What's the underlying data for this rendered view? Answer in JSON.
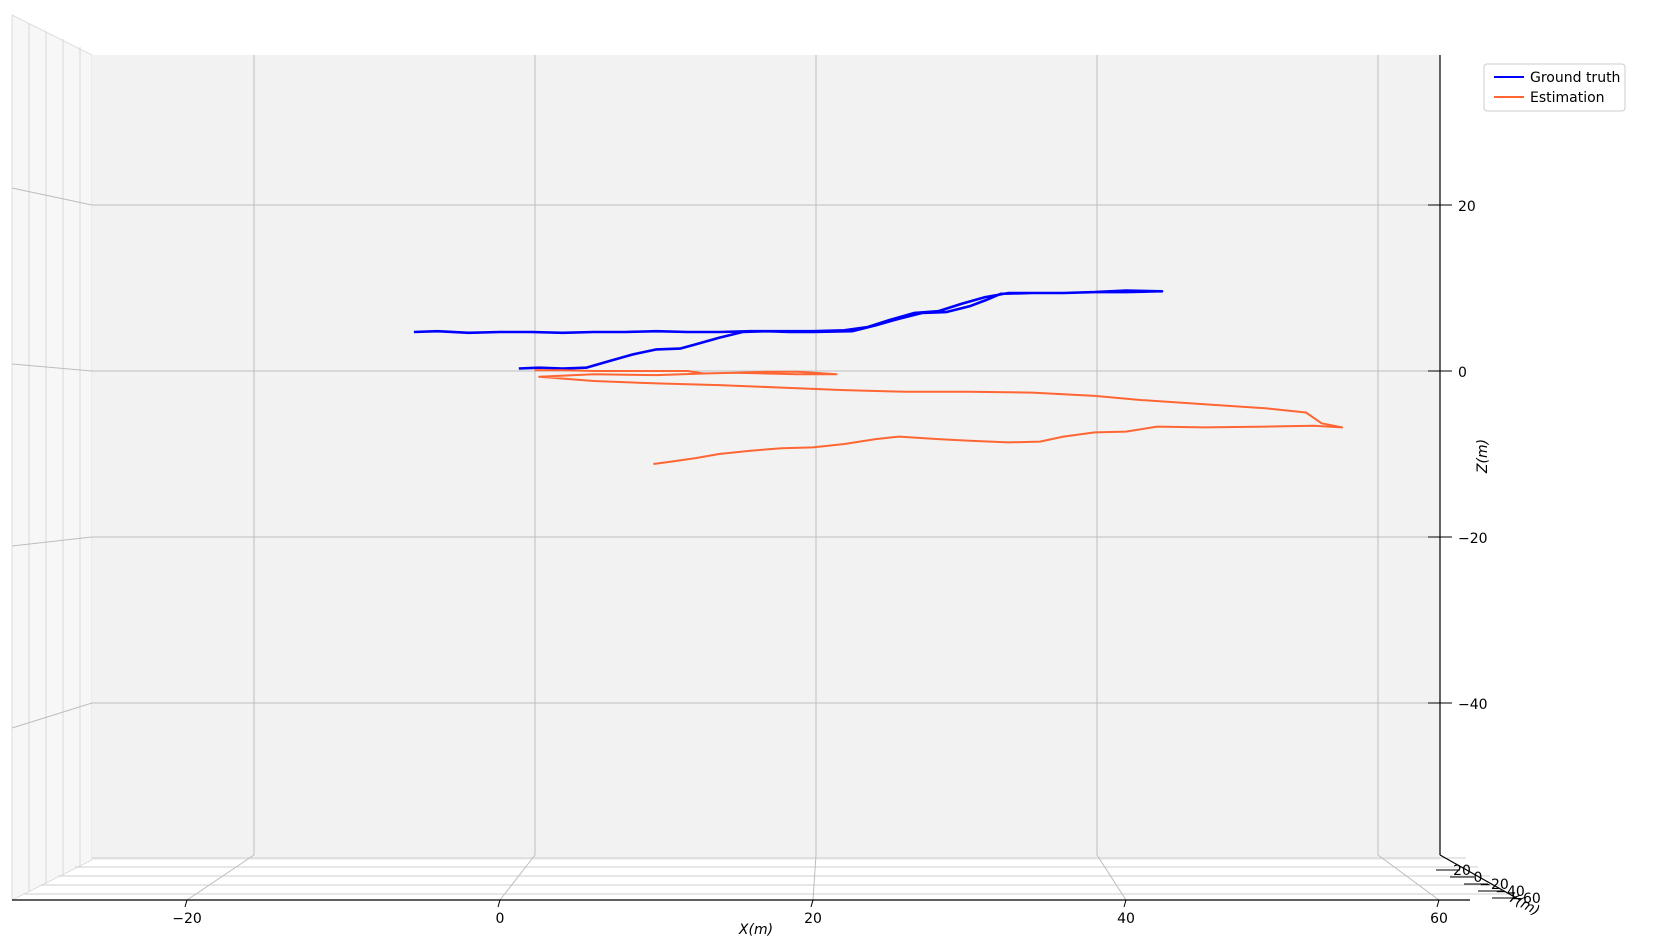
{
  "chart_data": {
    "type": "line",
    "projection": "3d",
    "xlabel": "X(m)",
    "ylabel": "Y(m)",
    "zlabel": "Z(m)",
    "xlim": [
      -30,
      65
    ],
    "zlim": [
      -58,
      37
    ],
    "x_ticks": [
      -20,
      0,
      20,
      40,
      60
    ],
    "z_ticks": [
      -40,
      -20,
      0,
      20
    ],
    "y_ticks": [
      20,
      0,
      -20,
      -40,
      -60
    ],
    "grid": true,
    "legend": {
      "placement": "top-right"
    },
    "series": [
      {
        "name": "Ground truth",
        "color": "#0000ff",
        "points": [
          [
            1.2,
            0.3
          ],
          [
            2.5,
            0.4
          ],
          [
            4,
            0.3
          ],
          [
            5.5,
            0.4
          ],
          [
            7,
            1.2
          ],
          [
            8.5,
            2
          ],
          [
            10,
            2.6
          ],
          [
            11.5,
            2.7
          ],
          [
            12.5,
            3.2
          ],
          [
            14,
            4
          ],
          [
            15.5,
            4.7
          ],
          [
            17,
            4.8
          ],
          [
            18.5,
            4.7
          ],
          [
            20,
            4.7
          ],
          [
            22.5,
            4.8
          ],
          [
            24,
            5.5
          ],
          [
            25.5,
            6.3
          ],
          [
            27,
            7
          ],
          [
            28.5,
            7.1
          ],
          [
            30,
            7.8
          ],
          [
            31,
            8.5
          ],
          [
            32,
            9.3
          ],
          [
            34,
            9.4
          ],
          [
            36,
            9.4
          ],
          [
            38,
            9.5
          ],
          [
            40,
            9.5
          ],
          [
            42,
            9.6
          ],
          [
            42.3,
            9.6
          ],
          [
            40,
            9.7
          ],
          [
            38,
            9.5
          ],
          [
            36,
            9.4
          ],
          [
            34,
            9.4
          ],
          [
            32.5,
            9.4
          ],
          [
            31,
            8.9
          ],
          [
            29.5,
            8.1
          ],
          [
            28,
            7.2
          ],
          [
            26.5,
            7
          ],
          [
            25,
            6.2
          ],
          [
            23.5,
            5.3
          ],
          [
            22,
            4.9
          ],
          [
            20,
            4.8
          ],
          [
            18,
            4.8
          ],
          [
            16,
            4.8
          ],
          [
            14,
            4.7
          ],
          [
            12,
            4.7
          ],
          [
            10,
            4.8
          ],
          [
            8,
            4.7
          ],
          [
            6,
            4.7
          ],
          [
            4,
            4.6
          ],
          [
            2,
            4.7
          ],
          [
            0,
            4.7
          ],
          [
            -2,
            4.6
          ],
          [
            -4,
            4.8
          ],
          [
            -5.5,
            4.7
          ]
        ]
      },
      {
        "name": "Estimation",
        "color": "#ff6633",
        "points": [
          [
            2.2,
            0.1
          ],
          [
            4,
            0.1
          ],
          [
            6,
            0
          ],
          [
            8,
            0
          ],
          [
            10,
            0
          ],
          [
            12,
            0
          ],
          [
            13,
            -0.3
          ],
          [
            15,
            -0.2
          ],
          [
            17,
            -0.1
          ],
          [
            19,
            -0.1
          ],
          [
            21.5,
            -0.4
          ],
          [
            19,
            -0.4
          ],
          [
            17,
            -0.3
          ],
          [
            15,
            -0.2
          ],
          [
            13,
            -0.3
          ],
          [
            10,
            -0.5
          ],
          [
            6,
            -0.4
          ],
          [
            2.5,
            -0.7
          ],
          [
            6,
            -1.2
          ],
          [
            10,
            -1.5
          ],
          [
            14,
            -1.7
          ],
          [
            18,
            -2
          ],
          [
            22,
            -2.3
          ],
          [
            26,
            -2.5
          ],
          [
            30,
            -2.5
          ],
          [
            34,
            -2.6
          ],
          [
            38,
            -3
          ],
          [
            41,
            -3.5
          ],
          [
            45,
            -4
          ],
          [
            49,
            -4.5
          ],
          [
            51.5,
            -5
          ],
          [
            52.5,
            -6.3
          ],
          [
            53.8,
            -6.8
          ],
          [
            52,
            -6.6
          ],
          [
            49,
            -6.7
          ],
          [
            45,
            -6.8
          ],
          [
            42,
            -6.7
          ],
          [
            40,
            -7.3
          ],
          [
            38,
            -7.4
          ],
          [
            36,
            -7.9
          ],
          [
            34.5,
            -8.5
          ],
          [
            32.5,
            -8.6
          ],
          [
            30,
            -8.4
          ],
          [
            28,
            -8.2
          ],
          [
            25.5,
            -7.9
          ],
          [
            24,
            -8.2
          ],
          [
            22,
            -8.8
          ],
          [
            20,
            -9.2
          ],
          [
            18,
            -9.3
          ],
          [
            16,
            -9.6
          ],
          [
            14,
            -10
          ],
          [
            12.5,
            -10.5
          ],
          [
            11,
            -10.9
          ],
          [
            9.8,
            -11.2
          ]
        ]
      }
    ]
  }
}
